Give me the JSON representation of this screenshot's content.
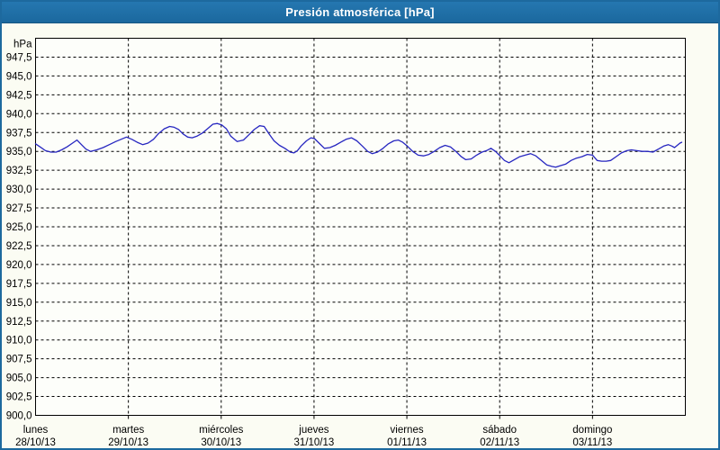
{
  "window": {
    "title": "Presión atmosférica [hPa]"
  },
  "colors": {
    "titlebar": "#1f6ba5",
    "frame": "#1d699e",
    "window_bg": "#fbfcf3",
    "plot_bg": "#fdfefa",
    "grid": "#000000",
    "axis_border": "#000000",
    "label_text": "#000000",
    "title_text": "#ffffff",
    "series": "#2626c0"
  },
  "chart_data": {
    "type": "line",
    "title": "Presión atmosférica [hPa]",
    "y_unit": "hPa",
    "ylim": [
      900,
      950
    ],
    "y_tick_step": 2.5,
    "grid": "dashed",
    "legend": "none",
    "y_tick_labels": [
      "947,5",
      "945,0",
      "942,5",
      "940,0",
      "937,5",
      "935,0",
      "932,5",
      "930,0",
      "927,5",
      "925,0",
      "922,5",
      "920,0",
      "917,5",
      "915,0",
      "912,5",
      "910,0",
      "907,5",
      "905,0",
      "902,5",
      "900,0"
    ],
    "x_range_days": 7,
    "x_days": [
      {
        "name": "lunes",
        "date": "28/10/13"
      },
      {
        "name": "martes",
        "date": "29/10/13"
      },
      {
        "name": "miércoles",
        "date": "30/10/13"
      },
      {
        "name": "jueves",
        "date": "31/10/13"
      },
      {
        "name": "viernes",
        "date": "01/11/13"
      },
      {
        "name": "sábado",
        "date": "02/11/13"
      },
      {
        "name": "domingo",
        "date": "03/11/13"
      }
    ],
    "series": [
      {
        "name": "Presión atmosférica",
        "units": "hPa",
        "points": [
          [
            0.0,
            936.0
          ],
          [
            0.048,
            935.6
          ],
          [
            0.107,
            935.1
          ],
          [
            0.165,
            934.9
          ],
          [
            0.223,
            934.9
          ],
          [
            0.281,
            935.2
          ],
          [
            0.339,
            935.6
          ],
          [
            0.398,
            936.1
          ],
          [
            0.446,
            936.5
          ],
          [
            0.494,
            935.9
          ],
          [
            0.543,
            935.3
          ],
          [
            0.591,
            935.0
          ],
          [
            0.659,
            935.2
          ],
          [
            0.727,
            935.5
          ],
          [
            0.795,
            935.9
          ],
          [
            0.863,
            936.3
          ],
          [
            0.921,
            936.6
          ],
          [
            0.979,
            936.9
          ],
          [
            1.037,
            936.6
          ],
          [
            1.096,
            936.2
          ],
          [
            1.154,
            935.9
          ],
          [
            1.212,
            936.1
          ],
          [
            1.27,
            936.6
          ],
          [
            1.328,
            937.4
          ],
          [
            1.386,
            938.0
          ],
          [
            1.445,
            938.3
          ],
          [
            1.493,
            938.2
          ],
          [
            1.542,
            937.9
          ],
          [
            1.59,
            937.3
          ],
          [
            1.639,
            936.9
          ],
          [
            1.687,
            936.8
          ],
          [
            1.736,
            937.0
          ],
          [
            1.794,
            937.4
          ],
          [
            1.852,
            938.0
          ],
          [
            1.91,
            938.6
          ],
          [
            1.958,
            938.7
          ],
          [
            2.007,
            938.5
          ],
          [
            2.055,
            938.0
          ],
          [
            2.104,
            937.0
          ],
          [
            2.172,
            936.3
          ],
          [
            2.24,
            936.5
          ],
          [
            2.298,
            937.2
          ],
          [
            2.356,
            937.9
          ],
          [
            2.414,
            938.4
          ],
          [
            2.463,
            938.3
          ],
          [
            2.511,
            937.4
          ],
          [
            2.569,
            936.4
          ],
          [
            2.627,
            935.8
          ],
          [
            2.686,
            935.4
          ],
          [
            2.744,
            934.9
          ],
          [
            2.783,
            934.8
          ],
          [
            2.821,
            935.1
          ],
          [
            2.86,
            935.7
          ],
          [
            2.918,
            936.4
          ],
          [
            2.967,
            936.8
          ],
          [
            3.005,
            936.7
          ],
          [
            3.054,
            936.1
          ],
          [
            3.112,
            935.4
          ],
          [
            3.17,
            935.5
          ],
          [
            3.229,
            935.8
          ],
          [
            3.287,
            936.2
          ],
          [
            3.345,
            936.6
          ],
          [
            3.403,
            936.8
          ],
          [
            3.461,
            936.4
          ],
          [
            3.52,
            935.7
          ],
          [
            3.578,
            935.0
          ],
          [
            3.626,
            934.7
          ],
          [
            3.684,
            934.9
          ],
          [
            3.743,
            935.4
          ],
          [
            3.801,
            936.0
          ],
          [
            3.859,
            936.4
          ],
          [
            3.907,
            936.5
          ],
          [
            3.956,
            936.2
          ],
          [
            4.004,
            935.7
          ],
          [
            4.062,
            935.0
          ],
          [
            4.121,
            934.5
          ],
          [
            4.179,
            934.4
          ],
          [
            4.237,
            934.6
          ],
          [
            4.295,
            935.0
          ],
          [
            4.354,
            935.5
          ],
          [
            4.412,
            935.8
          ],
          [
            4.47,
            935.6
          ],
          [
            4.528,
            935.0
          ],
          [
            4.586,
            934.3
          ],
          [
            4.634,
            933.9
          ],
          [
            4.693,
            934.0
          ],
          [
            4.751,
            934.5
          ],
          [
            4.809,
            934.9
          ],
          [
            4.857,
            935.1
          ],
          [
            4.906,
            935.4
          ],
          [
            4.954,
            935.0
          ],
          [
            5.003,
            934.4
          ],
          [
            5.051,
            933.8
          ],
          [
            5.1,
            933.5
          ],
          [
            5.158,
            933.9
          ],
          [
            5.216,
            934.3
          ],
          [
            5.274,
            934.5
          ],
          [
            5.332,
            934.7
          ],
          [
            5.39,
            934.4
          ],
          [
            5.449,
            933.8
          ],
          [
            5.507,
            933.2
          ],
          [
            5.565,
            933.0
          ],
          [
            5.604,
            932.9
          ],
          [
            5.652,
            933.1
          ],
          [
            5.71,
            933.3
          ],
          [
            5.769,
            933.8
          ],
          [
            5.827,
            934.1
          ],
          [
            5.885,
            934.3
          ],
          [
            5.943,
            934.6
          ],
          [
            6.001,
            934.5
          ],
          [
            6.05,
            933.8
          ],
          [
            6.098,
            933.7
          ],
          [
            6.147,
            933.7
          ],
          [
            6.195,
            933.8
          ],
          [
            6.253,
            934.3
          ],
          [
            6.312,
            934.8
          ],
          [
            6.37,
            935.1
          ],
          [
            6.418,
            935.2
          ],
          [
            6.476,
            935.1
          ],
          [
            6.535,
            935.0
          ],
          [
            6.593,
            935.0
          ],
          [
            6.651,
            934.9
          ],
          [
            6.709,
            935.3
          ],
          [
            6.767,
            935.7
          ],
          [
            6.816,
            935.9
          ],
          [
            6.855,
            935.7
          ],
          [
            6.884,
            935.5
          ],
          [
            6.913,
            935.8
          ],
          [
            6.942,
            936.1
          ],
          [
            6.961,
            936.2
          ]
        ]
      }
    ]
  }
}
